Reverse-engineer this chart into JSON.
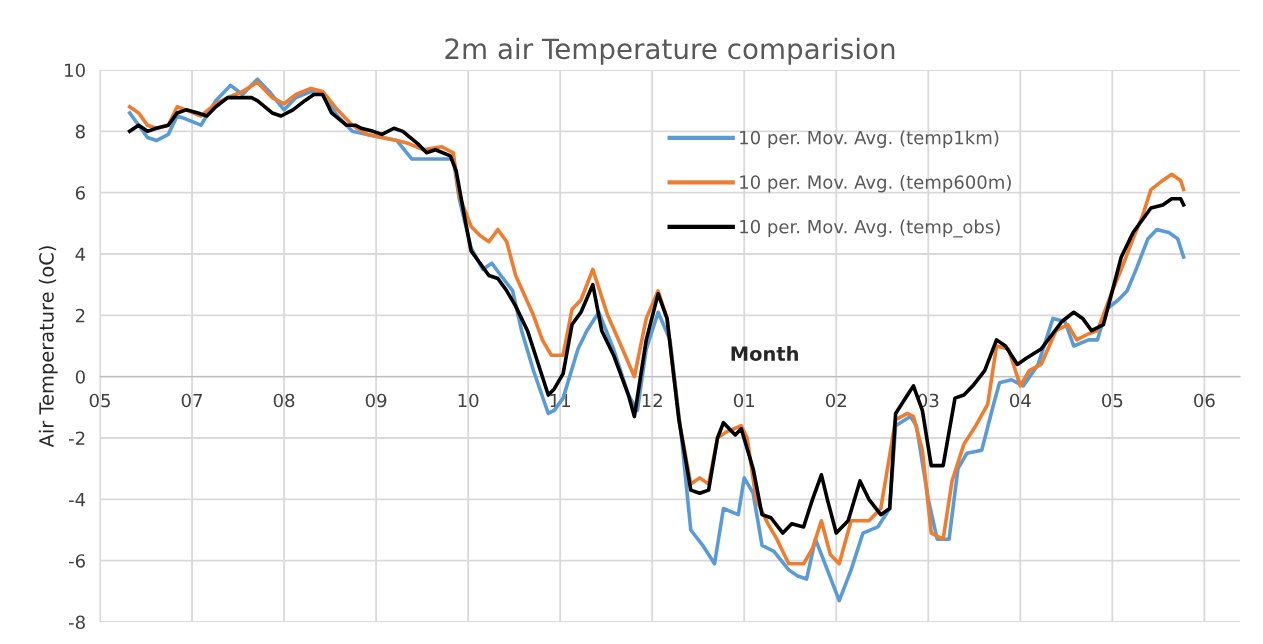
{
  "chart_data": {
    "type": "line",
    "title": "2m air Temperature comparision",
    "xlabel": "Month",
    "ylabel": "Air Temperature (oC)",
    "xlim": [
      "2001-05-31",
      "2002-06-19"
    ],
    "ylim": [
      -8,
      10
    ],
    "xticks": [
      {
        "value": "2001-05-31",
        "label": "05"
      },
      {
        "value": "2001-07-01",
        "label": "07"
      },
      {
        "value": "2001-08-01",
        "label": "08"
      },
      {
        "value": "2001-09-01",
        "label": "09"
      },
      {
        "value": "2001-10-02",
        "label": "10"
      },
      {
        "value": "2001-11-02",
        "label": "11"
      },
      {
        "value": "2001-12-03",
        "label": "12"
      },
      {
        "value": "2002-01-03",
        "label": "01"
      },
      {
        "value": "2002-02-03",
        "label": "02"
      },
      {
        "value": "2002-03-06",
        "label": "03"
      },
      {
        "value": "2002-04-06",
        "label": "04"
      },
      {
        "value": "2002-05-07",
        "label": "05"
      },
      {
        "value": "2002-06-07",
        "label": "06"
      }
    ],
    "yticks": [
      -8,
      -6,
      -4,
      -2,
      0,
      2,
      4,
      6,
      8,
      10
    ],
    "grid": true,
    "legend": "top",
    "marker": "none",
    "line_style": "solid",
    "series": [
      {
        "name": "10 per. Mov. Avg. (temp1km)",
        "color": "#5b9bd5",
        "x": [
          "2001-06-10",
          "2001-06-13",
          "2001-06-16",
          "2001-06-19",
          "2001-06-23",
          "2001-06-26",
          "2001-06-29",
          "2001-07-04",
          "2001-07-09",
          "2001-07-14",
          "2001-07-18",
          "2001-07-23",
          "2001-07-27",
          "2001-08-01",
          "2001-08-05",
          "2001-08-10",
          "2001-08-14",
          "2001-08-19",
          "2001-08-24",
          "2001-08-29",
          "2001-09-03",
          "2001-09-08",
          "2001-09-13",
          "2001-09-18",
          "2001-09-23",
          "2001-09-27",
          "2001-09-29",
          "2001-10-03",
          "2001-10-07",
          "2001-10-10",
          "2001-10-13",
          "2001-10-17",
          "2001-10-20",
          "2001-10-24",
          "2001-10-29",
          "2001-10-31",
          "2001-11-03",
          "2001-11-08",
          "2001-11-11",
          "2001-11-15",
          "2001-11-20",
          "2001-11-25",
          "2001-11-28",
          "2001-12-01",
          "2001-12-05",
          "2001-12-09",
          "2001-12-13",
          "2001-12-16",
          "2001-12-20",
          "2001-12-24",
          "2001-12-27",
          "2002-01-01",
          "2002-01-03",
          "2002-01-06",
          "2002-01-09",
          "2002-01-13",
          "2002-01-18",
          "2002-01-21",
          "2002-01-24",
          "2002-01-27",
          "2002-01-31",
          "2002-02-04",
          "2002-02-08",
          "2002-02-12",
          "2002-02-17",
          "2002-02-21",
          "2002-02-23",
          "2002-02-28",
          "2002-03-02",
          "2002-03-06",
          "2002-03-09",
          "2002-03-13",
          "2002-03-16",
          "2002-03-19",
          "2002-03-24",
          "2002-03-28",
          "2002-03-30",
          "2002-04-03",
          "2002-04-07",
          "2002-04-12",
          "2002-04-17",
          "2002-04-21",
          "2002-04-24",
          "2002-04-29",
          "2002-05-02",
          "2002-05-05",
          "2002-05-09",
          "2002-05-12",
          "2002-05-15",
          "2002-05-19",
          "2002-05-22",
          "2002-05-26",
          "2002-05-29",
          "2002-05-31"
        ],
        "values": [
          8.6,
          8.2,
          7.8,
          7.7,
          7.9,
          8.5,
          8.4,
          8.2,
          9.0,
          9.5,
          9.2,
          9.7,
          9.3,
          8.7,
          9.1,
          9.3,
          9.2,
          8.5,
          8.0,
          7.9,
          7.8,
          7.7,
          7.1,
          7.1,
          7.1,
          7.1,
          5.8,
          4.2,
          3.5,
          3.7,
          3.3,
          2.8,
          1.5,
          0.2,
          -1.2,
          -1.1,
          -0.7,
          0.9,
          1.5,
          2.1,
          0.9,
          -0.6,
          -1.1,
          0.9,
          2.1,
          1.2,
          -2.1,
          -5.0,
          -5.5,
          -6.1,
          -4.3,
          -4.5,
          -3.3,
          -3.8,
          -5.5,
          -5.7,
          -6.3,
          -6.5,
          -6.6,
          -5.3,
          -6.3,
          -7.3,
          -6.3,
          -5.1,
          -4.9,
          -4.3,
          -1.6,
          -1.3,
          -1.6,
          -4.0,
          -5.3,
          -5.3,
          -3.0,
          -2.5,
          -2.4,
          -0.9,
          -0.2,
          -0.1,
          -0.3,
          0.4,
          1.9,
          1.8,
          1.0,
          1.2,
          1.2,
          2.2,
          2.5,
          2.8,
          3.5,
          4.5,
          4.8,
          4.7,
          4.5,
          3.9
        ]
      },
      {
        "name": "10 per. Mov. Avg. (temp600m)",
        "color": "#ed7d31",
        "x": [
          "2001-06-10",
          "2001-06-13",
          "2001-06-16",
          "2001-06-19",
          "2001-06-23",
          "2001-06-26",
          "2001-06-29",
          "2001-07-04",
          "2001-07-09",
          "2001-07-13",
          "2001-07-18",
          "2001-07-23",
          "2001-07-28",
          "2001-08-01",
          "2001-08-05",
          "2001-08-10",
          "2001-08-14",
          "2001-08-19",
          "2001-08-24",
          "2001-08-29",
          "2001-09-03",
          "2001-09-08",
          "2001-09-12",
          "2001-09-17",
          "2001-09-23",
          "2001-09-27",
          "2001-09-29",
          "2001-10-03",
          "2001-10-06",
          "2001-10-09",
          "2001-10-12",
          "2001-10-15",
          "2001-10-18",
          "2001-10-24",
          "2001-10-27",
          "2001-10-30",
          "2001-11-03",
          "2001-11-06",
          "2001-11-09",
          "2001-11-13",
          "2001-11-18",
          "2001-11-23",
          "2001-11-27",
          "2001-12-01",
          "2001-12-05",
          "2001-12-08",
          "2001-12-12",
          "2001-12-16",
          "2001-12-19",
          "2001-12-22",
          "2001-12-25",
          "2001-12-28",
          "2002-01-02",
          "2002-01-04",
          "2002-01-07",
          "2002-01-11",
          "2002-01-14",
          "2002-01-18",
          "2002-01-23",
          "2002-01-26",
          "2002-01-29",
          "2002-02-01",
          "2002-02-04",
          "2002-02-08",
          "2002-02-14",
          "2002-02-18",
          "2002-02-23",
          "2002-02-27",
          "2002-03-01",
          "2002-03-04",
          "2002-03-07",
          "2002-03-11",
          "2002-03-14",
          "2002-03-18",
          "2002-03-22",
          "2002-03-26",
          "2002-03-29",
          "2002-04-02",
          "2002-04-06",
          "2002-04-09",
          "2002-04-13",
          "2002-04-18",
          "2002-04-22",
          "2002-04-25",
          "2002-04-29",
          "2002-05-02",
          "2002-05-07",
          "2002-05-10",
          "2002-05-14",
          "2002-05-17",
          "2002-05-20",
          "2002-05-24",
          "2002-05-27",
          "2002-05-30",
          "2002-05-31"
        ],
        "values": [
          8.8,
          8.6,
          8.2,
          8.1,
          8.2,
          8.8,
          8.7,
          8.5,
          8.9,
          9.1,
          9.3,
          9.6,
          9.1,
          8.9,
          9.2,
          9.4,
          9.3,
          8.7,
          8.2,
          7.9,
          7.8,
          7.7,
          7.6,
          7.4,
          7.5,
          7.3,
          5.9,
          4.9,
          4.6,
          4.4,
          4.8,
          4.4,
          3.3,
          2.0,
          1.2,
          0.7,
          0.7,
          2.2,
          2.5,
          3.5,
          2.0,
          0.9,
          0,
          1.9,
          2.8,
          1.9,
          -1.4,
          -3.5,
          -3.3,
          -3.5,
          -2.0,
          -1.8,
          -1.6,
          -2.0,
          -4.0,
          -4.8,
          -5.3,
          -6.1,
          -6.1,
          -5.6,
          -4.7,
          -5.8,
          -6.1,
          -4.7,
          -4.7,
          -4.3,
          -1.4,
          -1.2,
          -1.3,
          -2.4,
          -5.1,
          -5.3,
          -3.4,
          -2.2,
          -1.6,
          -0.9,
          1.0,
          0.9,
          -0.3,
          0.2,
          0.4,
          1.5,
          1.7,
          1.2,
          1.4,
          1.5,
          2.8,
          3.5,
          4.5,
          5.2,
          6.1,
          6.4,
          6.6,
          6.4,
          6.1
        ]
      },
      {
        "name": "10 per. Mov. Avg. (temp_obs)",
        "color": "#000000",
        "x": [
          "2001-06-10",
          "2001-06-13",
          "2001-06-16",
          "2001-06-19",
          "2001-06-23",
          "2001-06-26",
          "2001-06-29",
          "2001-07-03",
          "2001-07-06",
          "2001-07-09",
          "2001-07-13",
          "2001-07-16",
          "2001-07-21",
          "2001-07-23",
          "2001-07-28",
          "2001-07-31",
          "2001-08-04",
          "2001-08-08",
          "2001-08-11",
          "2001-08-14",
          "2001-08-17",
          "2001-08-22",
          "2001-08-25",
          "2001-08-27",
          "2001-08-31",
          "2001-09-03",
          "2001-09-07",
          "2001-09-10",
          "2001-09-15",
          "2001-09-18",
          "2001-09-21",
          "2001-09-26",
          "2001-09-28",
          "2001-10-01",
          "2001-10-03",
          "2001-10-06",
          "2001-10-09",
          "2001-10-12",
          "2001-10-15",
          "2001-10-18",
          "2001-10-22",
          "2001-10-25",
          "2001-10-29",
          "2001-10-31",
          "2001-11-03",
          "2001-11-06",
          "2001-11-09",
          "2001-11-13",
          "2001-11-16",
          "2001-11-20",
          "2001-11-25",
          "2001-11-27",
          "2001-12-01",
          "2001-12-05",
          "2001-12-08",
          "2001-12-12",
          "2001-12-16",
          "2001-12-19",
          "2001-12-22",
          "2001-12-25",
          "2001-12-27",
          "2001-12-31",
          "2002-01-02",
          "2002-01-06",
          "2002-01-09",
          "2002-01-12",
          "2002-01-16",
          "2002-01-19",
          "2002-01-23",
          "2002-01-26",
          "2002-01-29",
          "2002-01-31",
          "2002-02-03",
          "2002-02-07",
          "2002-02-11",
          "2002-02-14",
          "2002-02-18",
          "2002-02-21",
          "2002-02-23",
          "2002-02-27",
          "2002-03-01",
          "2002-03-04",
          "2002-03-07",
          "2002-03-11",
          "2002-03-15",
          "2002-03-18",
          "2002-03-21",
          "2002-03-25",
          "2002-03-29",
          "2002-04-01",
          "2002-04-05",
          "2002-04-08",
          "2002-04-13",
          "2002-04-20",
          "2002-04-24",
          "2002-04-27",
          "2002-04-30",
          "2002-05-04",
          "2002-05-07",
          "2002-05-10",
          "2002-05-14",
          "2002-05-17",
          "2002-05-20",
          "2002-05-24",
          "2002-05-27",
          "2002-05-30",
          "2002-05-31"
        ],
        "values": [
          8.0,
          8.2,
          8.0,
          8.1,
          8.2,
          8.6,
          8.7,
          8.6,
          8.5,
          8.8,
          9.1,
          9.1,
          9.1,
          9.0,
          8.6,
          8.5,
          8.7,
          9.0,
          9.2,
          9.2,
          8.6,
          8.2,
          8.2,
          8.1,
          8.0,
          7.9,
          8.1,
          8.0,
          7.6,
          7.3,
          7.4,
          7.2,
          6.7,
          5.1,
          4.1,
          3.7,
          3.3,
          3.2,
          2.8,
          2.3,
          1.5,
          0.6,
          -0.6,
          -0.4,
          0.1,
          1.7,
          2.1,
          3.0,
          1.5,
          0.7,
          -0.6,
          -1.3,
          1.2,
          2.7,
          1.9,
          -1.4,
          -3.7,
          -3.8,
          -3.7,
          -2.0,
          -1.5,
          -1.9,
          -1.7,
          -3.0,
          -4.5,
          -4.6,
          -5.1,
          -4.8,
          -4.9,
          -4.0,
          -3.2,
          -4.0,
          -5.1,
          -4.7,
          -3.4,
          -4.0,
          -4.5,
          -4.3,
          -1.2,
          -0.6,
          -0.3,
          -1.1,
          -2.9,
          -2.9,
          -0.7,
          -0.6,
          -0.3,
          0.2,
          1.2,
          1.0,
          0.4,
          0.6,
          0.9,
          1.8,
          2.1,
          1.9,
          1.5,
          1.7,
          2.8,
          3.9,
          4.7,
          5.1,
          5.5,
          5.6,
          5.8,
          5.8,
          5.6
        ]
      }
    ]
  }
}
